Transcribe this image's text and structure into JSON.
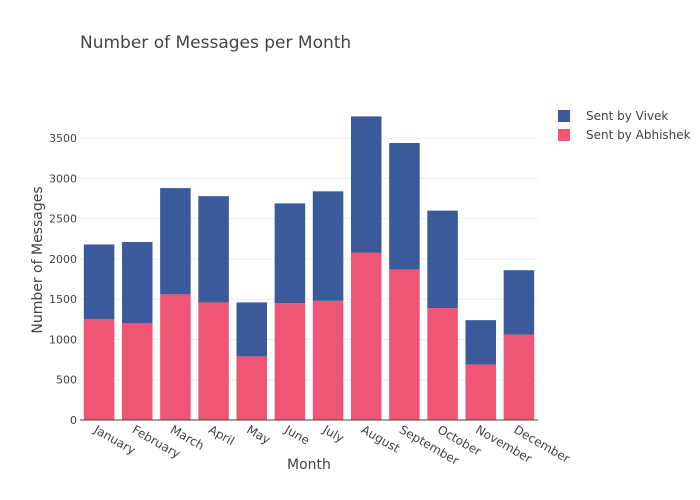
{
  "chart_data": {
    "type": "bar",
    "barmode": "stack",
    "title": "Number of Messages per Month",
    "xlabel": "Month",
    "ylabel": "Number of Messages",
    "categories": [
      "January",
      "February",
      "March",
      "April",
      "May",
      "June",
      "July",
      "August",
      "September",
      "October",
      "November",
      "December"
    ],
    "ylim": [
      0,
      3800
    ],
    "yticks": [
      0,
      500,
      1000,
      1500,
      2000,
      2500,
      3000,
      3500
    ],
    "grid": true,
    "legend_position": "top-right",
    "series": [
      {
        "name": "Sent by Abhishek",
        "color": "#ef5675",
        "values": [
          1250,
          1200,
          1560,
          1460,
          790,
          1450,
          1480,
          2080,
          1870,
          1390,
          690,
          1060
        ]
      },
      {
        "name": "Sent by Vivek",
        "color": "#3a5a9c",
        "values": [
          930,
          1010,
          1320,
          1320,
          670,
          1240,
          1360,
          1690,
          1570,
          1210,
          550,
          800
        ]
      }
    ]
  }
}
